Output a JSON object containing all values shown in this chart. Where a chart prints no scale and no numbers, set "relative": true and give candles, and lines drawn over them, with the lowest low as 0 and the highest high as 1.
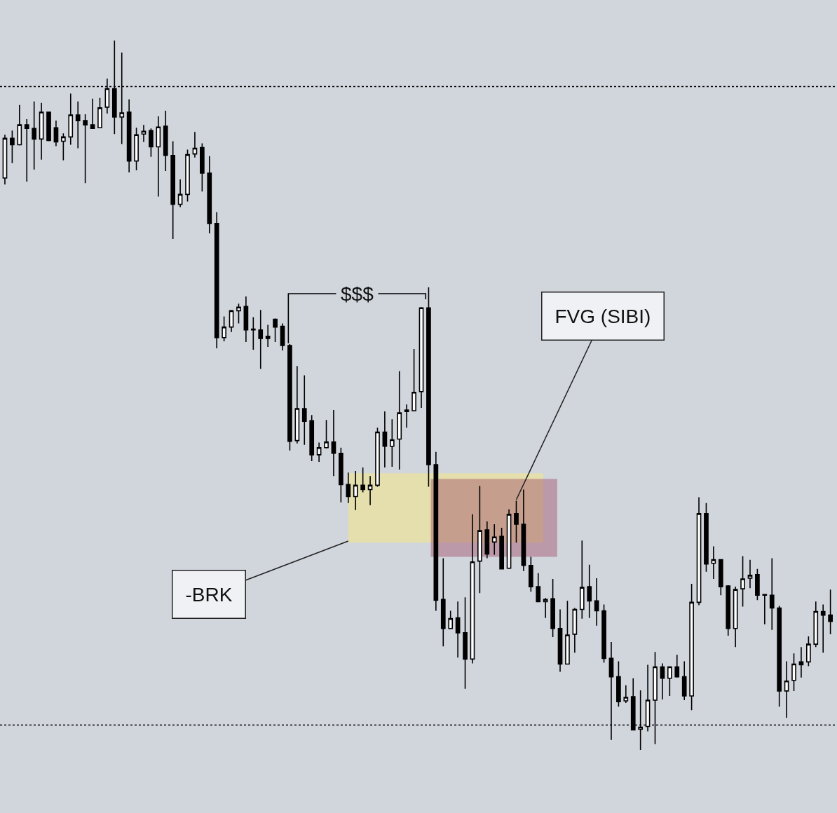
{
  "chart_data": {
    "type": "candlestick",
    "relative": true,
    "categories": [
      null,
      null,
      null,
      null,
      null,
      null,
      null,
      null,
      null,
      null,
      null,
      null,
      null,
      null,
      null,
      null,
      null,
      null,
      null,
      null,
      null,
      null,
      null,
      null,
      null,
      null,
      null,
      null,
      null,
      null,
      null,
      null,
      null,
      null,
      null,
      null,
      null,
      null,
      null,
      null,
      null,
      null,
      null,
      null,
      null,
      null,
      null,
      null,
      null,
      null,
      null,
      null,
      null,
      null,
      null,
      null,
      null,
      null,
      null,
      null,
      null,
      null,
      null,
      null,
      null,
      null,
      null,
      null,
      null,
      null,
      null,
      null,
      null,
      null,
      null,
      null,
      null,
      null,
      null,
      null,
      null,
      null,
      null,
      null,
      null,
      null,
      null,
      null,
      null,
      null,
      null,
      null,
      null,
      null,
      null,
      null,
      null,
      null,
      null,
      null,
      null,
      null,
      null,
      null,
      null,
      null,
      null,
      null,
      null,
      null,
      null,
      null,
      null,
      null
    ],
    "ohlc": [
      [
        0.806,
        0.867,
        0.797,
        0.862
      ],
      [
        0.862,
        0.873,
        0.827,
        0.853
      ],
      [
        0.853,
        0.909,
        0.852,
        0.881
      ],
      [
        0.881,
        0.889,
        0.801,
        0.876
      ],
      [
        0.876,
        0.914,
        0.818,
        0.861
      ],
      [
        0.861,
        0.912,
        0.832,
        0.899
      ],
      [
        0.899,
        0.899,
        0.858,
        0.859
      ],
      [
        0.877,
        0.887,
        0.851,
        0.857
      ],
      [
        0.858,
        0.869,
        0.831,
        0.864
      ],
      [
        0.864,
        0.925,
        0.853,
        0.895
      ],
      [
        0.895,
        0.914,
        0.848,
        0.887
      ],
      [
        0.887,
        0.896,
        0.799,
        0.881
      ],
      [
        0.881,
        0.918,
        0.876,
        0.876
      ],
      [
        0.877,
        0.919,
        0.877,
        0.905
      ],
      [
        0.906,
        0.946,
        0.897,
        0.932
      ],
      [
        0.932,
        1.0,
        0.868,
        0.892
      ],
      [
        0.892,
        0.983,
        0.854,
        0.898
      ],
      [
        0.899,
        0.917,
        0.814,
        0.83
      ],
      [
        0.83,
        0.877,
        0.817,
        0.867
      ],
      [
        0.868,
        0.881,
        0.857,
        0.872
      ],
      [
        0.873,
        0.876,
        0.836,
        0.85
      ],
      [
        0.85,
        0.893,
        0.78,
        0.878
      ],
      [
        0.879,
        0.901,
        0.816,
        0.838
      ],
      [
        0.838,
        0.858,
        0.72,
        0.769
      ],
      [
        0.769,
        0.804,
        0.765,
        0.783
      ],
      [
        0.783,
        0.846,
        0.773,
        0.839
      ],
      [
        0.84,
        0.871,
        0.835,
        0.848
      ],
      [
        0.849,
        0.855,
        0.787,
        0.813
      ],
      [
        0.813,
        0.837,
        0.728,
        0.742
      ],
      [
        0.742,
        0.758,
        0.566,
        0.581
      ],
      [
        0.581,
        0.611,
        0.576,
        0.596
      ],
      [
        0.596,
        0.62,
        0.589,
        0.619
      ],
      [
        0.619,
        0.629,
        0.601,
        0.624
      ],
      [
        0.625,
        0.639,
        0.575,
        0.592
      ],
      [
        0.593,
        0.61,
        0.564,
        0.592
      ],
      [
        0.592,
        0.62,
        0.537,
        0.58
      ],
      [
        0.583,
        0.599,
        0.568,
        0.58
      ],
      [
        0.607,
        0.608,
        0.575,
        0.596
      ],
      [
        0.597,
        0.601,
        0.563,
        0.57
      ],
      [
        0.57,
        0.572,
        0.422,
        0.435
      ],
      [
        0.436,
        0.541,
        0.432,
        0.481
      ],
      [
        0.481,
        0.528,
        0.43,
        0.463
      ],
      [
        0.464,
        0.472,
        0.407,
        0.416
      ],
      [
        0.416,
        0.433,
        0.406,
        0.426
      ],
      [
        0.426,
        0.465,
        0.425,
        0.434
      ],
      [
        0.434,
        0.479,
        0.386,
        0.418
      ],
      [
        0.418,
        0.426,
        0.349,
        0.374
      ],
      [
        0.374,
        0.391,
        0.348,
        0.357
      ],
      [
        0.357,
        0.393,
        0.338,
        0.373
      ],
      [
        0.373,
        0.398,
        0.363,
        0.367
      ],
      [
        0.367,
        0.386,
        0.345,
        0.373
      ],
      [
        0.373,
        0.454,
        0.371,
        0.448
      ],
      [
        0.448,
        0.477,
        0.398,
        0.428
      ],
      [
        0.428,
        0.466,
        0.399,
        0.437
      ],
      [
        0.438,
        0.534,
        0.395,
        0.475
      ],
      [
        0.477,
        0.487,
        0.454,
        0.479
      ],
      [
        0.478,
        0.565,
        0.478,
        0.504
      ],
      [
        0.505,
        0.624,
        0.482,
        0.623
      ],
      [
        0.623,
        0.652,
        0.371,
        0.402
      ],
      [
        0.402,
        0.42,
        0.196,
        0.211
      ],
      [
        0.212,
        0.27,
        0.146,
        0.171
      ],
      [
        0.171,
        0.196,
        0.17,
        0.185
      ],
      [
        0.186,
        0.209,
        0.13,
        0.165
      ],
      [
        0.165,
        0.215,
        0.086,
        0.128
      ],
      [
        0.128,
        0.332,
        0.122,
        0.265
      ],
      [
        0.266,
        0.372,
        0.221,
        0.309
      ],
      [
        0.31,
        0.322,
        0.27,
        0.276
      ],
      [
        0.293,
        0.318,
        0.275,
        0.3
      ],
      [
        0.301,
        0.313,
        0.255,
        0.255
      ],
      [
        0.256,
        0.339,
        0.255,
        0.332
      ],
      [
        0.333,
        0.351,
        0.292,
        0.318
      ],
      [
        0.318,
        0.367,
        0.252,
        0.26
      ],
      [
        0.26,
        0.272,
        0.223,
        0.23
      ],
      [
        0.23,
        0.249,
        0.208,
        0.209
      ],
      [
        0.209,
        0.214,
        0.186,
        0.212
      ],
      [
        0.213,
        0.241,
        0.159,
        0.171
      ],
      [
        0.171,
        0.198,
        0.11,
        0.121
      ],
      [
        0.121,
        0.21,
        0.121,
        0.162
      ],
      [
        0.163,
        0.2,
        0.137,
        0.198
      ],
      [
        0.198,
        0.295,
        0.185,
        0.229
      ],
      [
        0.23,
        0.261,
        0.186,
        0.21
      ],
      [
        0.21,
        0.242,
        0.175,
        0.196
      ],
      [
        0.196,
        0.205,
        0.123,
        0.129
      ],
      [
        0.129,
        0.152,
        0.014,
        0.103
      ],
      [
        0.103,
        0.125,
        0.061,
        0.068
      ],
      [
        0.069,
        0.091,
        0.066,
        0.074
      ],
      [
        0.075,
        0.101,
        0.028,
        0.028
      ],
      [
        0.029,
        0.084,
        0.0,
        0.032
      ],
      [
        0.033,
        0.12,
        0.026,
        0.07
      ],
      [
        0.07,
        0.138,
        0.008,
        0.117
      ],
      [
        0.117,
        0.122,
        0.071,
        0.101
      ],
      [
        0.101,
        0.117,
        0.076,
        0.117
      ],
      [
        0.117,
        0.134,
        0.102,
        0.103
      ],
      [
        0.103,
        0.125,
        0.07,
        0.076
      ],
      [
        0.076,
        0.234,
        0.056,
        0.208
      ],
      [
        0.208,
        0.356,
        0.204,
        0.333
      ],
      [
        0.333,
        0.348,
        0.251,
        0.262
      ],
      [
        0.263,
        0.287,
        0.241,
        0.268
      ],
      [
        0.268,
        0.268,
        0.218,
        0.23
      ],
      [
        0.231,
        0.232,
        0.161,
        0.171
      ],
      [
        0.171,
        0.23,
        0.145,
        0.226
      ],
      [
        0.227,
        0.273,
        0.202,
        0.241
      ],
      [
        0.242,
        0.268,
        0.228,
        0.246
      ],
      [
        0.247,
        0.255,
        0.211,
        0.218
      ],
      [
        0.219,
        0.219,
        0.177,
        0.218
      ],
      [
        0.218,
        0.27,
        0.169,
        0.2
      ],
      [
        0.2,
        0.203,
        0.061,
        0.083
      ],
      [
        0.083,
        0.125,
        0.045,
        0.097
      ],
      [
        0.098,
        0.136,
        0.083,
        0.121
      ],
      [
        0.124,
        0.145,
        0.102,
        0.12
      ],
      [
        0.124,
        0.16,
        0.118,
        0.149
      ],
      [
        0.149,
        0.209,
        0.145,
        0.195
      ],
      [
        0.195,
        0.205,
        0.137,
        0.19
      ],
      [
        0.19,
        0.226,
        0.163,
        0.181
      ]
    ],
    "ref_lines": [
      {
        "axis": "y",
        "value": 0.935,
        "line_style": "dotted",
        "color": "#000000"
      },
      {
        "axis": "y",
        "value": 0.035,
        "line_style": "dotted",
        "color": "#000000"
      }
    ],
    "bands": [
      {
        "axis": "y",
        "from": 0.292,
        "to": 0.39,
        "color": "#f0e68c"
      },
      {
        "axis": "y",
        "from": 0.272,
        "to": 0.382,
        "color": "#a0506a"
      }
    ],
    "annotations": [
      "$$$",
      "FVG (SIBI)",
      "-BRK"
    ]
  }
}
